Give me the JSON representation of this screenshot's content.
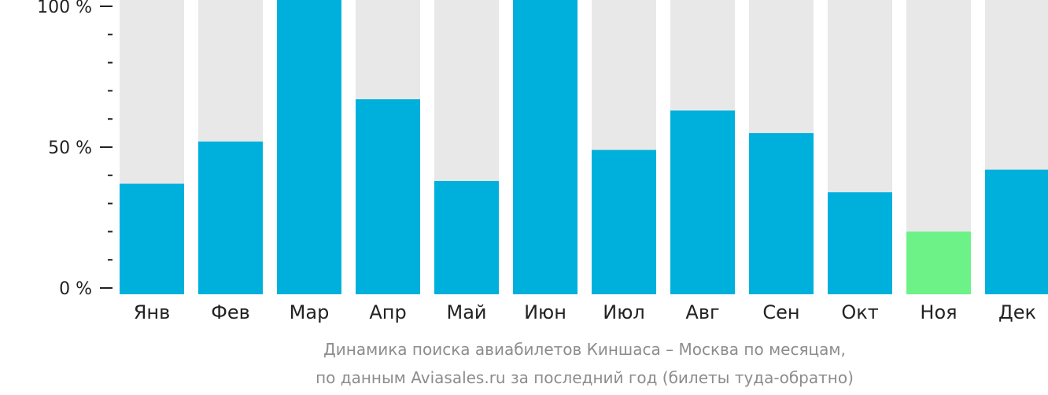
{
  "chart_data": {
    "type": "bar",
    "categories": [
      "Янв",
      "Фев",
      "Мар",
      "Апр",
      "Май",
      "Июн",
      "Июл",
      "Авг",
      "Сен",
      "Окт",
      "Ноя",
      "Дек"
    ],
    "values": [
      37,
      52,
      103,
      67,
      38,
      104,
      49,
      63,
      55,
      34,
      20,
      42
    ],
    "ylim": [
      0,
      100
    ],
    "y_ticks": [
      {
        "value": 0,
        "label": "0 %"
      },
      {
        "value": 50,
        "label": "50 %"
      },
      {
        "value": 100,
        "label": "100 %"
      }
    ],
    "y_minor_step": 10,
    "background_bar_color": "#e8e8e8",
    "bar_color": "#00b0dc",
    "highlight_color": "#6cf286",
    "highlight_category": "Ноя",
    "grid": false,
    "caption_lines": [
      "Динамика поиска авиабилетов Киншаса – Москва по месяцам,",
      "по данным Aviasales.ru за последний год (билеты туда-обратно)"
    ]
  }
}
